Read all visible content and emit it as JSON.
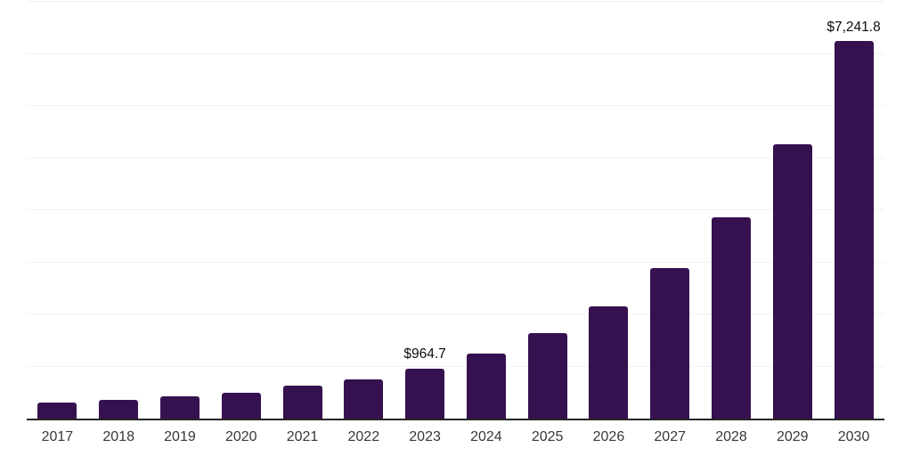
{
  "chart_data": {
    "type": "bar",
    "categories": [
      "2017",
      "2018",
      "2019",
      "2020",
      "2021",
      "2022",
      "2023",
      "2024",
      "2025",
      "2026",
      "2027",
      "2028",
      "2029",
      "2030"
    ],
    "values": [
      310,
      360,
      430,
      500,
      630,
      760,
      964.7,
      1240,
      1640,
      2150,
      2890,
      3870,
      5270,
      7241.8
    ],
    "data_labels": {
      "2023": "$964.7",
      "2030": "$7,241.8"
    },
    "ylim": [
      0,
      8000
    ],
    "gridline_interval": 1000,
    "grid": true,
    "legend": false,
    "colors": {
      "bar": "#361150",
      "gridline": "#f1f1f3",
      "axis_line": "#262626",
      "tick_label": "#383838",
      "data_label": "#0d0d0d",
      "background": "#ffffff"
    }
  }
}
